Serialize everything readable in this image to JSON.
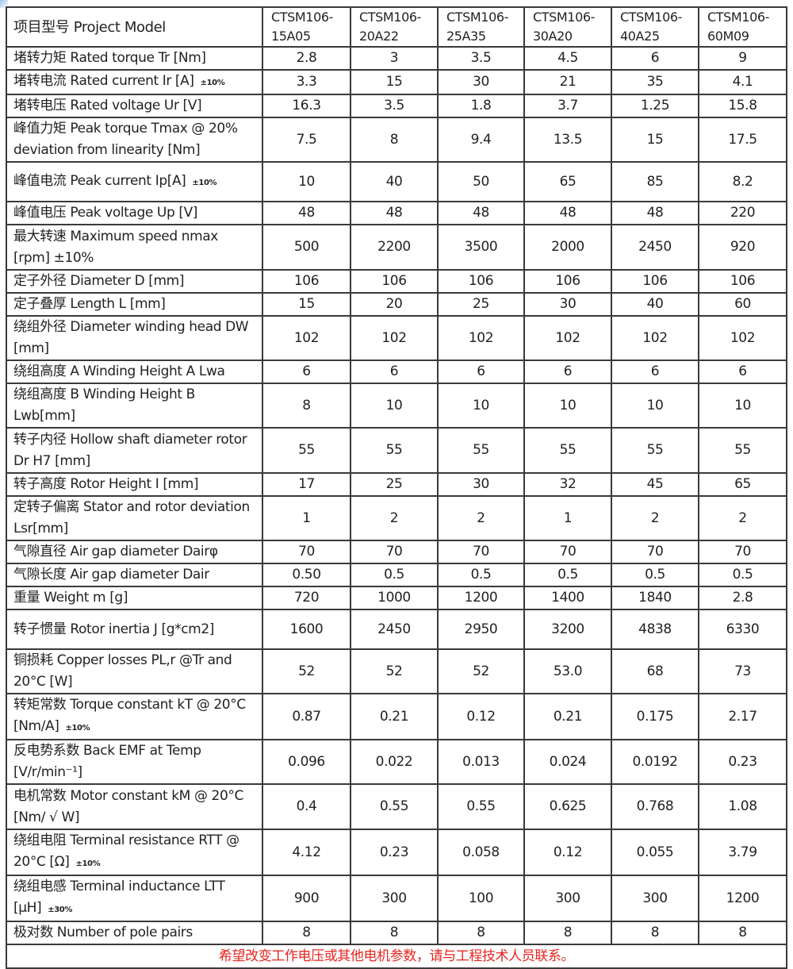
{
  "header": {
    "label": "项目型号 Project Model",
    "models": [
      "CTSM106-15A05",
      "CTSM106-20A22",
      "CTSM106-25A35",
      "CTSM106-30A20",
      "CTSM106-40A25",
      "CTSM106-60M09"
    ]
  },
  "rows": [
    {
      "label": "堵转力矩 Rated torque Tr    [Nm]",
      "note": "",
      "values": [
        "2.8",
        "3",
        "3.5",
        "4.5",
        "6",
        "9"
      ]
    },
    {
      "label": "堵转电流 Rated current Ir [A]",
      "note": "±10%",
      "values": [
        "3.3",
        "15",
        "30",
        "21",
        "35",
        "4.1"
      ]
    },
    {
      "label": "堵转电压 Rated voltage Ur [V]",
      "note": "",
      "values": [
        "16.3",
        "3.5",
        "1.8",
        "3.7",
        "1.25",
        "15.8"
      ]
    },
    {
      "label": "峰值力矩 Peak torque Tmax @ 20% deviation from linearity [Nm]",
      "note": "",
      "values": [
        "7.5",
        "8",
        "9.4",
        "13.5",
        "15",
        "17.5"
      ]
    },
    {
      "label": "峰值电流 Peak current Ip[A]",
      "note": "±10%",
      "values": [
        "10",
        "40",
        "50",
        "65",
        "85",
        "8.2"
      ]
    },
    {
      "label": "峰值电压 Peak voltage Up [V]",
      "note": "",
      "values": [
        "48",
        "48",
        "48",
        "48",
        "48",
        "220"
      ]
    },
    {
      "label": "最大转速  Maximum speed nmax [rpm] ±10%",
      "note": "",
      "values": [
        "500",
        "2200",
        "3500",
        "2000",
        "2450",
        "920"
      ]
    },
    {
      "label": "定子外径 Diameter D [mm]",
      "note": "",
      "values": [
        "106",
        "106",
        "106",
        "106",
        "106",
        "106"
      ]
    },
    {
      "label": "定子叠厚 Length L [mm]",
      "note": "",
      "values": [
        "15",
        "20",
        "25",
        "30",
        "40",
        "60"
      ]
    },
    {
      "label": "绕组外径 Diameter winding head DW [mm]",
      "note": "",
      "values": [
        "102",
        "102",
        "102",
        "102",
        "102",
        "102"
      ]
    },
    {
      "label": "绕组高度 A Winding Height A Lwa",
      "note": "",
      "values": [
        "6",
        "6",
        "6",
        "6",
        "6",
        "6"
      ]
    },
    {
      "label": "绕组高度 B Winding Height B Lwb[mm]",
      "note": "",
      "values": [
        "8",
        "10",
        "10",
        "10",
        "10",
        "10"
      ]
    },
    {
      "label": "转子内径 Hollow shaft diameter rotor Dr H7 [mm]",
      "note": "",
      "values": [
        "55",
        "55",
        "55",
        "55",
        "55",
        "55"
      ]
    },
    {
      "label": "转子高度 Rotor Height I [mm]",
      "note": "",
      "values": [
        "17",
        "25",
        "30",
        "32",
        "45",
        "65"
      ]
    },
    {
      "label": "定转子偏离 Stator and rotor deviation Lsr[mm]",
      "note": "",
      "values": [
        "1",
        "2",
        "2",
        "1",
        "2",
        "2"
      ]
    },
    {
      "label": "气隙直径  Air gap diameter Dairφ",
      "note": "",
      "values": [
        "70",
        "70",
        "70",
        "70",
        "70",
        "70"
      ]
    },
    {
      "label": "气隙长度  Air gap diameter Dair",
      "note": "",
      "values": [
        "0.50",
        "0.5",
        "0.5",
        "0.5",
        "0.5",
        "0.5"
      ]
    },
    {
      "label": "重量 Weight m [g]",
      "note": "",
      "values": [
        "720",
        "1000",
        "1200",
        "1400",
        "1840",
        "2.8"
      ]
    },
    {
      "label": "转子惯量 Rotor inertia J [g*cm2]",
      "note": "",
      "values": [
        "1600",
        "2450",
        "2950",
        "3200",
        "4838",
        "6330"
      ]
    },
    {
      "label": "铜损耗 Copper losses PL,r @Tr and 20°C [W]",
      "note": "",
      "values": [
        "52",
        "52",
        "52",
        "53.0",
        "68",
        "73"
      ]
    },
    {
      "label": "转矩常数 Torque constant kT @ 20°C [Nm/A]",
      "note": "±10%",
      "values": [
        "0.87",
        "0.21",
        "0.12",
        "0.21",
        "0.175",
        "2.17"
      ]
    },
    {
      "label": "反电势系数 Back EMF at Temp [V/r/min⁻¹]",
      "note": "",
      "values": [
        "0.096",
        "0.022",
        "0.013",
        "0.024",
        "0.0192",
        "0.23"
      ]
    },
    {
      "label": "电机常数 Motor constant kM @ 20°C [Nm/ √ W]",
      "note": "",
      "values": [
        "0.4",
        "0.55",
        "0.55",
        "0.625",
        "0.768",
        "1.08"
      ]
    },
    {
      "label": "绕组电阻 Terminal resistance RTT @ 20°C [Ω]",
      "note": "±10%",
      "values": [
        "4.12",
        "0.23",
        "0.058",
        "0.12",
        "0.055",
        "3.79"
      ]
    },
    {
      "label": "绕组电感 Terminal inductance LTT [μH]",
      "note": "±30%",
      "values": [
        "900",
        "300",
        "100",
        "300",
        "300",
        "1200"
      ]
    },
    {
      "label": "极对数 Number of pole pairs",
      "note": "",
      "values": [
        "8",
        "8",
        "8",
        "8",
        "8",
        "8"
      ]
    }
  ],
  "footer": "希望改变工作电压或其他电机参数，请与工程技术人员联系。",
  "colors": {
    "footer_text": "#e8241f",
    "border": "#3a3a3a"
  }
}
